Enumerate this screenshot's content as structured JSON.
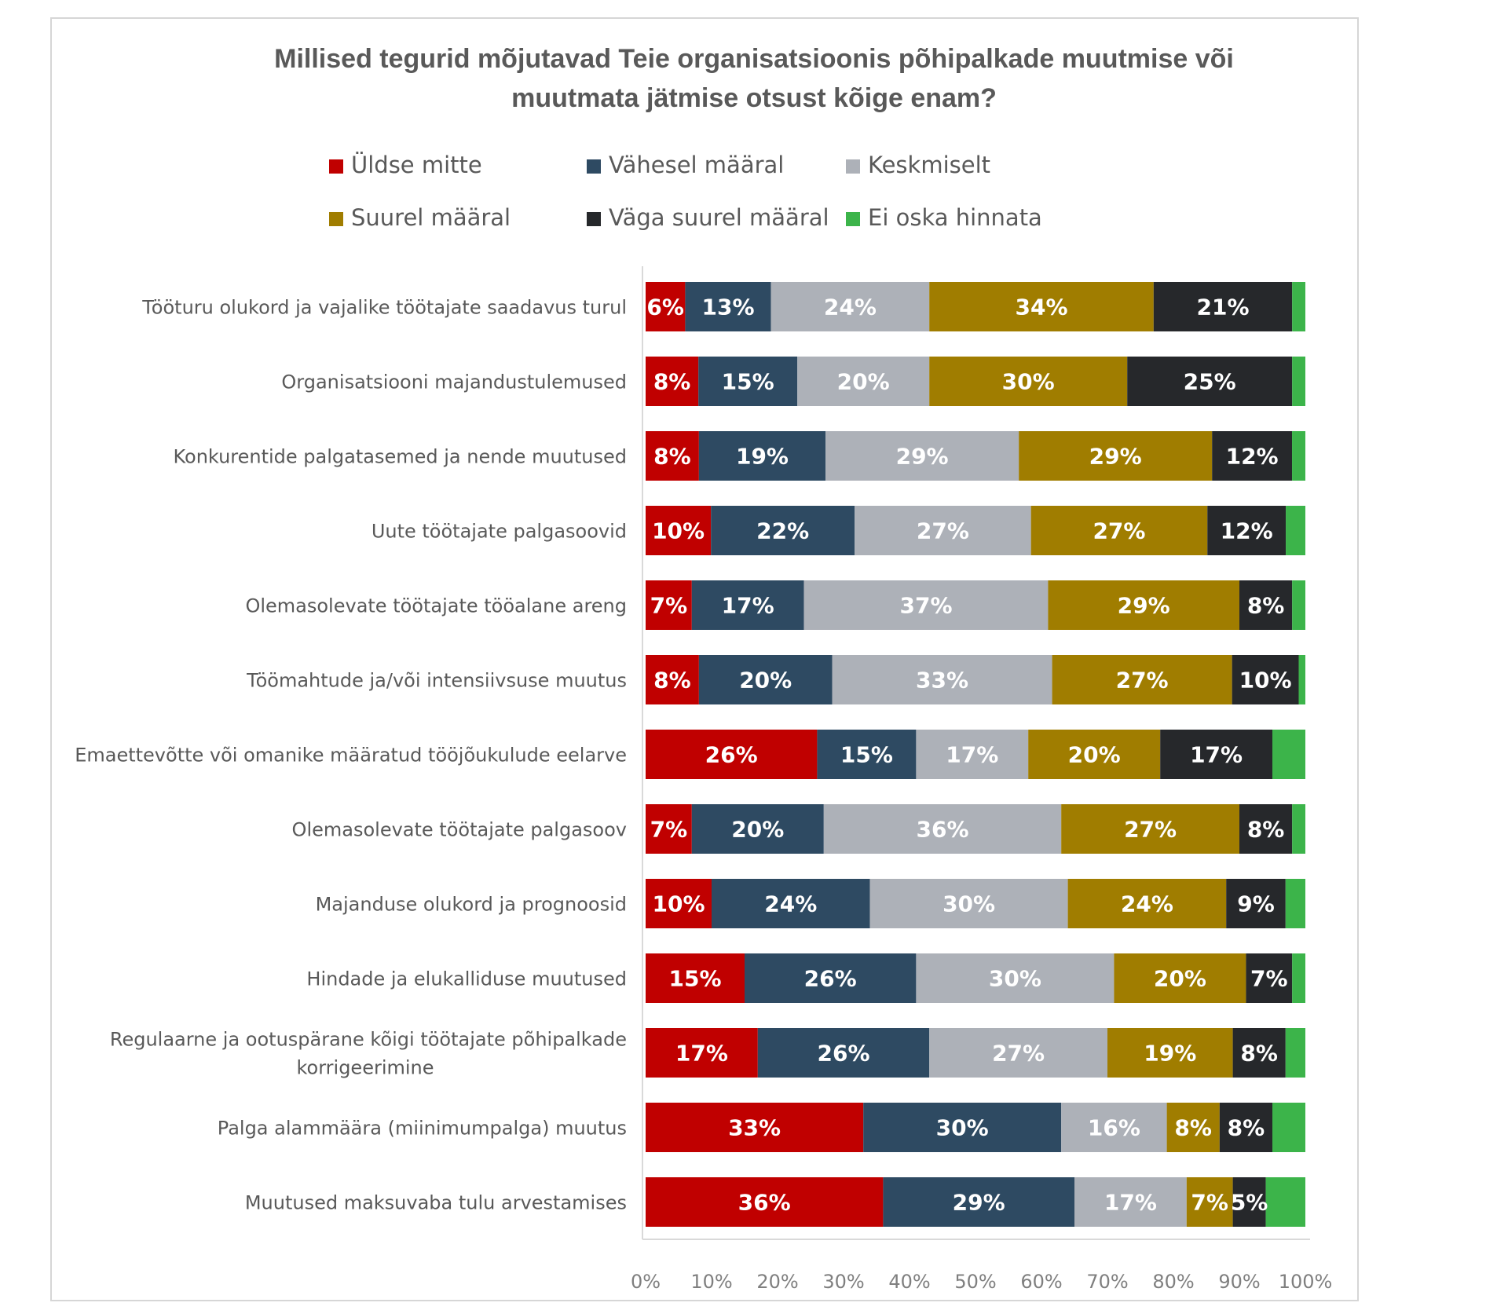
{
  "chart_data": {
    "type": "bar",
    "orientation": "horizontal",
    "stacked": "100%",
    "title_lines": [
      "Millised tegurid mõjutavad Teie organisatsioonis põhipalkade muutmise või",
      "muutmata jätmise otsust kõige enam?"
    ],
    "xlabel": "",
    "ylabel": "",
    "xlim": [
      0,
      100
    ],
    "x_ticks": [
      "0%",
      "10%",
      "20%",
      "30%",
      "40%",
      "50%",
      "60%",
      "70%",
      "80%",
      "90%",
      "100%"
    ],
    "grid": false,
    "legend_position": "top",
    "categories": [
      [
        "Tööturu olukord ja vajalike töötajate saadavus turul"
      ],
      [
        "Organisatsiooni majandustulemused"
      ],
      [
        "Konkurentide palgatasemed ja nende muutused"
      ],
      [
        "Uute töötajate palgasoovid"
      ],
      [
        "Olemasolevate töötajate tööalane areng"
      ],
      [
        "Töömahtude ja/või intensiivsuse muutus"
      ],
      [
        "Emaettevõtte või omanike määratud tööjõukulude eelarve"
      ],
      [
        "Olemasolevate töötajate palgasoov"
      ],
      [
        "Majanduse olukord ja prognoosid"
      ],
      [
        "Hindade ja elukalliduse muutused"
      ],
      [
        "Regulaarne ja ootuspärane kõigi töötajate põhipalkade",
        "korrigeerimine"
      ],
      [
        "Palga alammäära (miinimumpalga) muutus"
      ],
      [
        "Muutused maksuvaba tulu arvestamises"
      ]
    ],
    "series": [
      {
        "name": "Üldse mitte",
        "color": "#c00000",
        "show_labels": true,
        "values": [
          6,
          8,
          8,
          10,
          7,
          8,
          26,
          7,
          10,
          15,
          17,
          33,
          36
        ]
      },
      {
        "name": "Vähesel määral",
        "color": "#2e4a62",
        "show_labels": true,
        "values": [
          13,
          15,
          19,
          22,
          17,
          20,
          15,
          20,
          24,
          26,
          26,
          30,
          29
        ]
      },
      {
        "name": "Keskmiselt",
        "color": "#adb1b8",
        "show_labels": true,
        "values": [
          24,
          20,
          29,
          27,
          37,
          33,
          17,
          36,
          30,
          30,
          27,
          16,
          17
        ]
      },
      {
        "name": "Suurel määral",
        "color": "#a07d00",
        "show_labels": true,
        "values": [
          34,
          30,
          29,
          27,
          29,
          27,
          20,
          27,
          24,
          20,
          19,
          8,
          7
        ]
      },
      {
        "name": "Väga suurel määral",
        "color": "#26282b",
        "show_labels": true,
        "values": [
          21,
          25,
          12,
          12,
          8,
          10,
          17,
          8,
          9,
          7,
          8,
          8,
          5
        ]
      },
      {
        "name": "Ei oska hinnata",
        "color": "#3cb44a",
        "show_labels": false,
        "values": [
          2,
          2,
          2,
          3,
          2,
          1,
          5,
          2,
          3,
          2,
          3,
          5,
          6
        ]
      }
    ]
  }
}
